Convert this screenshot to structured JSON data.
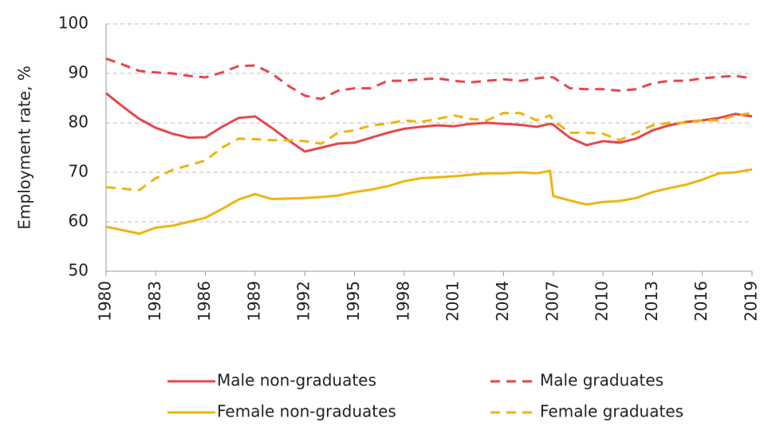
{
  "chart_data": {
    "type": "line",
    "y_label": "Employment rate, %",
    "x": [
      1980,
      1981,
      1982,
      1983,
      1984,
      1985,
      1986,
      1987,
      1988,
      1989,
      1990,
      1991,
      1992,
      1993,
      1994,
      1995,
      1996,
      1997,
      1998,
      1999,
      2000,
      2001,
      2002,
      2003,
      2004,
      2005,
      2006,
      2006.8,
      2007,
      2008,
      2009,
      2010,
      2011,
      2012,
      2013,
      2014,
      2015,
      2016,
      2017,
      2018,
      2019
    ],
    "xlim": [
      1980,
      2019
    ],
    "xticks": [
      1980,
      1983,
      1986,
      1989,
      1992,
      1995,
      1998,
      2001,
      2004,
      2007,
      2010,
      2013,
      2016,
      2019
    ],
    "ylim": [
      50,
      100
    ],
    "yticks": [
      50,
      60,
      70,
      80,
      90,
      100
    ],
    "grid": true,
    "series": [
      {
        "name": "Male non-graduates",
        "color": "#e5474b",
        "dashed": false,
        "values": [
          86,
          83.3,
          80.8,
          79,
          77.8,
          77,
          77.1,
          79.2,
          81,
          81.3,
          79,
          76.5,
          74.2,
          75,
          75.8,
          76,
          77,
          78,
          78.8,
          79.2,
          79.5,
          79.3,
          79.8,
          80,
          79.8,
          79.6,
          79.2,
          79.8,
          79.6,
          77,
          75.5,
          76.3,
          76,
          76.8,
          78.5,
          79.5,
          80.2,
          80.5,
          81,
          81.8,
          81.3
        ]
      },
      {
        "name": "Male graduates",
        "color": "#e5474b",
        "dashed": true,
        "values": [
          93,
          91.8,
          90.5,
          90.2,
          90,
          89.5,
          89.2,
          90.2,
          91.5,
          91.6,
          90,
          87.5,
          85.5,
          84.8,
          86.5,
          87,
          87,
          88.5,
          88.5,
          88.8,
          89,
          88.5,
          88.2,
          88.5,
          88.8,
          88.5,
          89,
          89.3,
          89.2,
          87,
          86.8,
          86.8,
          86.5,
          86.8,
          88,
          88.5,
          88.5,
          89,
          89.3,
          89.5,
          89
        ]
      },
      {
        "name": "Female non-graduates",
        "color": "#f0b310",
        "dashed": false,
        "values": [
          59,
          58.3,
          57.6,
          58.8,
          59.2,
          60,
          60.8,
          62.6,
          64.5,
          65.6,
          64.6,
          64.7,
          64.8,
          65,
          65.3,
          66,
          66.5,
          67.2,
          68.2,
          68.8,
          69,
          69.2,
          69.5,
          69.8,
          69.8,
          70,
          69.8,
          70.3,
          65.2,
          64.3,
          63.5,
          64,
          64.2,
          64.8,
          66,
          66.8,
          67.5,
          68.5,
          69.8,
          70,
          70.6
        ]
      },
      {
        "name": "Female graduates",
        "color": "#f0b310",
        "dashed": true,
        "values": [
          67,
          66.7,
          66.4,
          68.8,
          70.5,
          71.4,
          72.4,
          75,
          76.8,
          76.7,
          76.5,
          76.5,
          76.3,
          75.8,
          78,
          78.5,
          79.5,
          79.8,
          80.5,
          80.2,
          80.8,
          81.5,
          80.8,
          80.5,
          82,
          82,
          80.5,
          81.5,
          80.5,
          78,
          78,
          77.8,
          76.5,
          78,
          79.5,
          80,
          80,
          80.5,
          80.5,
          81.5,
          82
        ]
      }
    ]
  }
}
